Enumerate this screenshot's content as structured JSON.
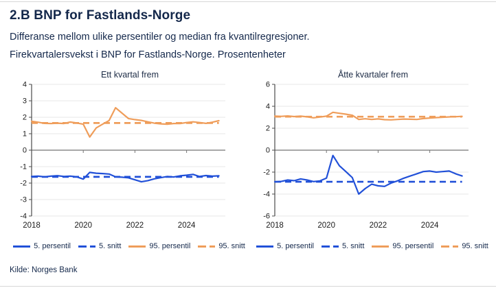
{
  "header": {
    "title": "2.B BNP for Fastlands-Norge",
    "subtitle1": "Differanse mellom ulike persentiler og median fra kvantilregresjoner.",
    "subtitle2": "Firekvartalersvekst i BNP for Fastlands-Norge. Prosentenheter"
  },
  "footer": {
    "source": "Kilde: Norges Bank"
  },
  "colors": {
    "navy_text": "#14284b",
    "blue": "#2150d8",
    "orange": "#ef9d5a",
    "grid": "#e7e7e7",
    "zero_line": "#757575",
    "spine": "#4a4a4a"
  },
  "legend": {
    "items": [
      {
        "label": "5. persentil",
        "color": "blue",
        "dash": false
      },
      {
        "label": "5. snitt",
        "color": "blue",
        "dash": true
      },
      {
        "label": "95. persentil",
        "color": "orange",
        "dash": false
      },
      {
        "label": "95. snitt",
        "color": "orange",
        "dash": true
      }
    ]
  },
  "chart_data": [
    {
      "type": "line",
      "title": "Ett kvartal frem",
      "xlabel": "",
      "ylabel": "",
      "grid": true,
      "legend_position": "bottom",
      "xlim": [
        2018,
        2025.5
      ],
      "ylim": [
        -4,
        4
      ],
      "yticks": [
        -4,
        -3,
        -2,
        -1,
        0,
        1,
        2,
        3,
        4
      ],
      "xticks": [
        2018,
        2020,
        2022,
        2024
      ],
      "x": [
        2018.0,
        2018.25,
        2018.5,
        2018.75,
        2019.0,
        2019.25,
        2019.5,
        2019.75,
        2020.0,
        2020.25,
        2020.5,
        2020.75,
        2021.0,
        2021.25,
        2021.5,
        2021.75,
        2022.0,
        2022.25,
        2022.5,
        2022.75,
        2023.0,
        2023.25,
        2023.5,
        2023.75,
        2024.0,
        2024.25,
        2024.5,
        2024.75,
        2025.0,
        2025.25
      ],
      "series": [
        {
          "name": "5. persentil",
          "color": "blue",
          "dash": false,
          "values": [
            -1.6,
            -1.58,
            -1.62,
            -1.58,
            -1.55,
            -1.6,
            -1.58,
            -1.62,
            -1.76,
            -1.35,
            -1.4,
            -1.42,
            -1.45,
            -1.62,
            -1.64,
            -1.68,
            -1.8,
            -1.92,
            -1.85,
            -1.74,
            -1.67,
            -1.6,
            -1.63,
            -1.56,
            -1.52,
            -1.47,
            -1.6,
            -1.54,
            -1.58,
            -1.56
          ]
        },
        {
          "name": "5. snitt",
          "color": "blue",
          "dash": true,
          "flat": -1.62
        },
        {
          "name": "95. persentil",
          "color": "orange",
          "dash": false,
          "values": [
            1.76,
            1.7,
            1.63,
            1.62,
            1.64,
            1.62,
            1.71,
            1.65,
            1.58,
            0.8,
            1.35,
            1.58,
            1.8,
            2.58,
            2.25,
            1.92,
            1.86,
            1.81,
            1.72,
            1.64,
            1.6,
            1.58,
            1.62,
            1.62,
            1.68,
            1.72,
            1.68,
            1.63,
            1.7,
            1.79
          ]
        },
        {
          "name": "95. snitt",
          "color": "orange",
          "dash": true,
          "flat": 1.65
        }
      ]
    },
    {
      "type": "line",
      "title": "Åtte kvartaler frem",
      "xlabel": "",
      "ylabel": "",
      "grid": true,
      "legend_position": "bottom",
      "xlim": [
        2018,
        2025.5
      ],
      "ylim": [
        -6,
        6
      ],
      "yticks": [
        -6,
        -4,
        -2,
        0,
        2,
        4,
        6
      ],
      "xticks": [
        2018,
        2020,
        2022,
        2024
      ],
      "x": [
        2018.0,
        2018.25,
        2018.5,
        2018.75,
        2019.0,
        2019.25,
        2019.5,
        2019.75,
        2020.0,
        2020.25,
        2020.5,
        2020.75,
        2021.0,
        2021.25,
        2021.5,
        2021.75,
        2022.0,
        2022.25,
        2022.5,
        2022.75,
        2023.0,
        2023.25,
        2023.5,
        2023.75,
        2024.0,
        2024.25,
        2024.5,
        2024.75,
        2025.0,
        2025.25
      ],
      "series": [
        {
          "name": "5. persentil",
          "color": "blue",
          "dash": false,
          "values": [
            -2.88,
            -2.85,
            -2.72,
            -2.78,
            -2.62,
            -2.72,
            -2.86,
            -2.8,
            -2.55,
            -0.48,
            -1.42,
            -1.95,
            -2.5,
            -4.0,
            -3.5,
            -3.1,
            -3.25,
            -3.3,
            -3.0,
            -2.8,
            -2.55,
            -2.35,
            -2.15,
            -1.95,
            -1.9,
            -2.0,
            -1.95,
            -1.9,
            -2.15,
            -2.35
          ]
        },
        {
          "name": "5. snitt",
          "color": "blue",
          "dash": true,
          "flat": -2.88
        },
        {
          "name": "95. persentil",
          "color": "orange",
          "dash": false,
          "values": [
            3.1,
            3.08,
            3.12,
            3.06,
            3.1,
            3.04,
            2.95,
            3.02,
            3.1,
            3.45,
            3.36,
            3.28,
            3.18,
            2.8,
            2.86,
            2.8,
            2.85,
            2.78,
            2.76,
            2.8,
            2.84,
            2.82,
            2.8,
            2.88,
            2.93,
            2.97,
            3.0,
            3.03,
            3.05,
            3.08
          ]
        },
        {
          "name": "95. snitt",
          "color": "orange",
          "dash": true,
          "flat": 3.05
        }
      ]
    }
  ]
}
